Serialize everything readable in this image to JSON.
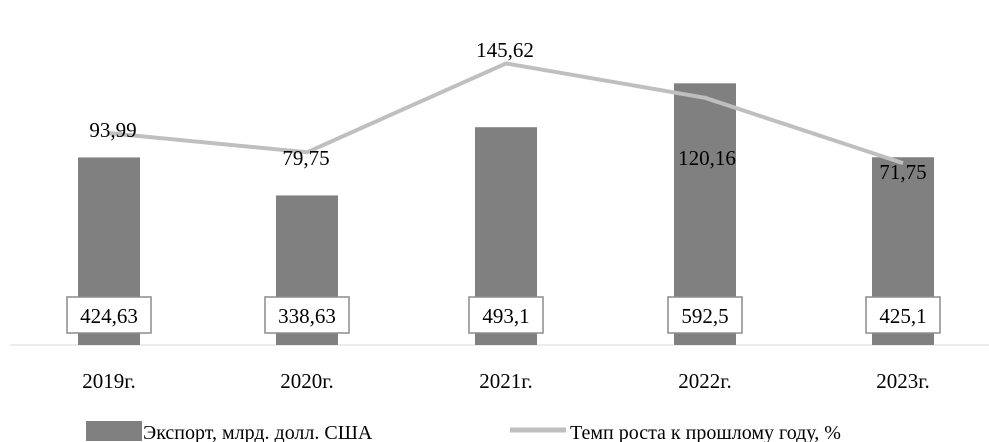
{
  "chart_data": {
    "type": "bar",
    "categories": [
      "2019г.",
      "2020г.",
      "2021г.",
      "2022г.",
      "2023г."
    ],
    "series": [
      {
        "name": "Экспорт, млрд. долл. США",
        "type": "bar",
        "values": [
          424.63,
          338.63,
          493.1,
          592.5,
          425.1
        ],
        "labels": [
          "424,63",
          "338,63",
          "493,1",
          "592,5",
          "425,1"
        ],
        "color": "#808080"
      },
      {
        "name": "Темп роста к прошлому году, %",
        "type": "line",
        "values": [
          93.99,
          79.75,
          145.62,
          120.16,
          71.75
        ],
        "labels": [
          "93,99",
          "79,75",
          "145,62",
          "120,16",
          "71,75"
        ],
        "color": "#bfbfbf"
      }
    ],
    "legend": {
      "position": "bottom",
      "items": [
        "Экспорт, млрд. долл. США",
        "Темп роста к прошлому году, %"
      ]
    },
    "grid": false
  }
}
